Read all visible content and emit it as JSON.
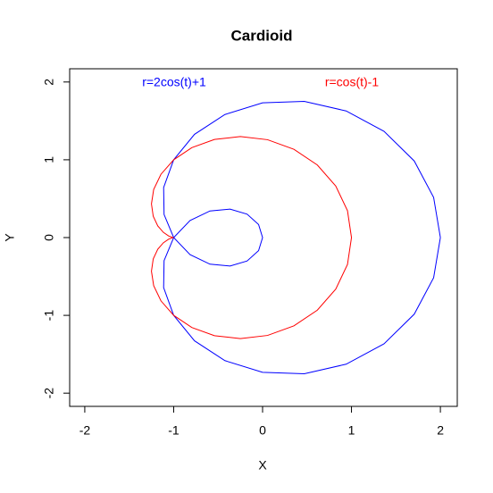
{
  "chart_data": {
    "type": "line",
    "title": "Cardioid",
    "x_label": "X",
    "y_label": "Y",
    "xlim": [
      -2.17,
      2.19
    ],
    "ylim": [
      -2.17,
      2.17
    ],
    "xticks": [
      -2,
      -1,
      0,
      1,
      2
    ],
    "yticks": [
      -2,
      -1,
      0,
      1,
      2
    ],
    "series": [
      {
        "name": "r=2cos(t)+1",
        "color": "#0000ff",
        "x": [
          2,
          1.924,
          1.706,
          1.366,
          0.94,
          0.469,
          0,
          -0.424,
          -0.766,
          -1,
          -1.113,
          -1.108,
          -1,
          -0.816,
          -0.592,
          -0.366,
          -0.174,
          -0.045,
          0,
          -0.045,
          -0.174,
          -0.366,
          -0.592,
          -0.816,
          -1,
          -1.108,
          -1.113,
          -1,
          -0.766,
          -0.424,
          0,
          0.469,
          0.94,
          1.366,
          1.706,
          1.924,
          2
        ],
        "values": [
          0,
          0.516,
          0.985,
          1.366,
          1.628,
          1.751,
          1.732,
          1.582,
          1.327,
          1,
          0.643,
          0.297,
          0,
          -0.219,
          -0.342,
          -0.366,
          -0.301,
          -0.168,
          0,
          0.168,
          0.301,
          0.366,
          0.342,
          0.219,
          0,
          -0.297,
          -0.643,
          -1,
          -1.327,
          -1.582,
          -1.732,
          -1.751,
          -1.628,
          -1.366,
          -0.985,
          -0.516,
          0
        ]
      },
      {
        "name": "r=cos(t)-1",
        "color": "#ff0000",
        "x": [
          -1,
          -1.015,
          -1.057,
          -1.116,
          -1.179,
          -1.23,
          -1.25,
          -1.225,
          -1.143,
          -1,
          -0.796,
          -0.541,
          -0.25,
          0.056,
          0.353,
          0.616,
          0.823,
          0.955,
          1,
          0.955,
          0.823,
          0.616,
          0.353,
          0.056,
          -0.25,
          -0.541,
          -0.796,
          -1,
          -1.143,
          -1.225,
          -1.25,
          -1.23,
          -1.179,
          -1.116,
          -1.057,
          -1.015,
          -1
        ],
        "values": [
          0,
          -0.003,
          -0.021,
          -0.067,
          -0.15,
          -0.274,
          -0.433,
          -0.618,
          -0.814,
          -1,
          -1.156,
          -1.261,
          -1.299,
          -1.258,
          -1.135,
          -0.933,
          -0.663,
          -0.345,
          0,
          0.345,
          0.663,
          0.933,
          1.135,
          1.258,
          1.299,
          1.261,
          1.156,
          1,
          0.814,
          0.618,
          0.433,
          0.274,
          0.15,
          0.067,
          0.021,
          0.003,
          0
        ]
      }
    ]
  }
}
